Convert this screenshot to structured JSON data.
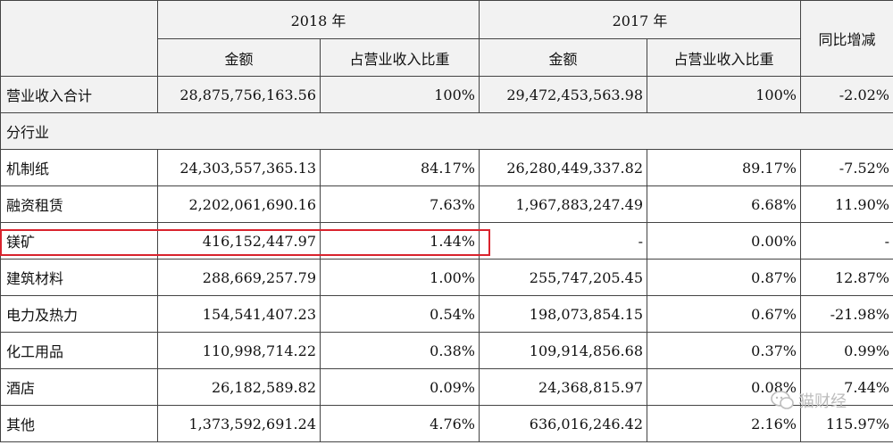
{
  "header": {
    "year1": "2018 年",
    "year2": "2017 年",
    "yoy": "同比增减",
    "amount_label": "金额",
    "share_label": "占营业收入比重"
  },
  "total": {
    "label": "营业收入合计",
    "amt2018": "28,875,756,163.56",
    "pct2018": "100%",
    "amt2017": "29,472,453,563.98",
    "pct2017": "100%",
    "yoy": "-2.02%"
  },
  "section_label": "分行业",
  "rows": [
    {
      "label": "机制纸",
      "amt2018": "24,303,557,365.13",
      "pct2018": "84.17%",
      "amt2017": "26,280,449,337.82",
      "pct2017": "89.17%",
      "yoy": "-7.52%"
    },
    {
      "label": "融资租赁",
      "amt2018": "2,202,061,690.16",
      "pct2018": "7.63%",
      "amt2017": "1,967,883,247.49",
      "pct2017": "6.68%",
      "yoy": "11.90%"
    },
    {
      "label": "镁矿",
      "amt2018": "416,152,447.97",
      "pct2018": "1.44%",
      "amt2017": "-",
      "pct2017": "0.00%",
      "yoy": "-"
    },
    {
      "label": "建筑材料",
      "amt2018": "288,669,257.79",
      "pct2018": "1.00%",
      "amt2017": "255,747,205.45",
      "pct2017": "0.87%",
      "yoy": "12.87%"
    },
    {
      "label": "电力及热力",
      "amt2018": "154,541,407.23",
      "pct2018": "0.54%",
      "amt2017": "198,073,854.15",
      "pct2017": "0.67%",
      "yoy": "-21.98%"
    },
    {
      "label": "化工用品",
      "amt2018": "110,998,714.22",
      "pct2018": "0.38%",
      "amt2017": "109,914,856.68",
      "pct2017": "0.37%",
      "yoy": "0.99%"
    },
    {
      "label": "酒店",
      "amt2018": "26,182,589.82",
      "pct2018": "0.09%",
      "amt2017": "24,368,815.97",
      "pct2017": "0.08%",
      "yoy": "7.44%"
    },
    {
      "label": "其他",
      "amt2018": "1,373,592,691.24",
      "pct2018": "4.76%",
      "amt2017": "636,016,246.42",
      "pct2017": "2.16%",
      "yoy": "115.97%"
    }
  ],
  "watermark": {
    "text": "猫财经",
    "icon": "chat-bubble-icon"
  },
  "colors": {
    "header_bg": "#f2f2f2",
    "border": "#444444",
    "highlight": "#d9232d",
    "watermark": "#bdbdbd"
  }
}
